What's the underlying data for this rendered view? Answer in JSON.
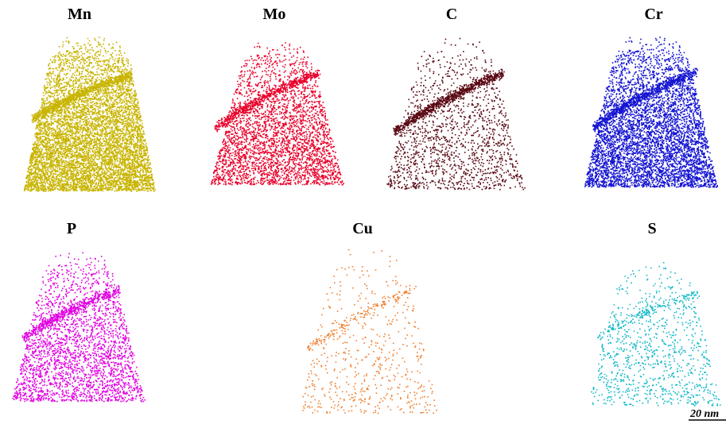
{
  "panels": [
    {
      "label": "Mn",
      "color": "#c8b400"
    },
    {
      "label": "Mo",
      "color": "#e8002a"
    },
    {
      "label": "C",
      "color": "#5a0a14"
    },
    {
      "label": "Cr",
      "color": "#1414d2"
    },
    {
      "label": "P",
      "color": "#e000e0"
    },
    {
      "label": "Cu",
      "color": "#f08030"
    },
    {
      "label": "S",
      "color": "#10b8c8"
    }
  ],
  "scale_bar": "20 nm"
}
